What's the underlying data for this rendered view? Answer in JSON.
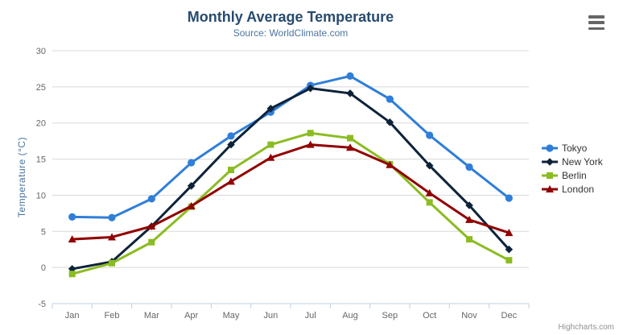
{
  "credits": "Highcharts.com",
  "menu": {
    "icon": "hamburger-export-menu"
  },
  "chart_data": {
    "type": "line",
    "title": "Monthly Average Temperature",
    "subtitle": "Source: WorldClimate.com",
    "categories": [
      "Jan",
      "Feb",
      "Mar",
      "Apr",
      "May",
      "Jun",
      "Jul",
      "Aug",
      "Sep",
      "Oct",
      "Nov",
      "Dec"
    ],
    "series": [
      {
        "name": "Tokyo",
        "color": "#2f7ed8",
        "marker": "circle",
        "values": [
          7.0,
          6.9,
          9.5,
          14.5,
          18.2,
          21.5,
          25.2,
          26.5,
          23.3,
          18.3,
          13.9,
          9.6
        ]
      },
      {
        "name": "New York",
        "color": "#0d233a",
        "marker": "diamond",
        "values": [
          -0.2,
          0.8,
          5.7,
          11.3,
          17.0,
          22.0,
          24.8,
          24.1,
          20.1,
          14.1,
          8.6,
          2.5
        ]
      },
      {
        "name": "Berlin",
        "color": "#8bbc21",
        "marker": "square",
        "values": [
          -0.9,
          0.6,
          3.5,
          8.4,
          13.5,
          17.0,
          18.6,
          17.9,
          14.3,
          9.0,
          3.9,
          1.0
        ]
      },
      {
        "name": "London",
        "color": "#910000",
        "marker": "triangle",
        "values": [
          3.9,
          4.2,
          5.7,
          8.5,
          11.9,
          15.2,
          17.0,
          16.6,
          14.2,
          10.3,
          6.6,
          4.8
        ]
      }
    ],
    "xlabel": "",
    "ylabel": "Temperature (°C)",
    "ylim": [
      -5,
      30
    ],
    "ytick_step": 5,
    "grid": true,
    "legend_position": "right-middle",
    "colors": {
      "grid": "#d8d8d8",
      "axis_line": "#c0d0e0",
      "tick_label": "#666666",
      "title": "#274b6d",
      "subtitle": "#4d759e",
      "axis_title": "#4d759e",
      "legend_text": "#333333",
      "credits": "#909090"
    }
  }
}
